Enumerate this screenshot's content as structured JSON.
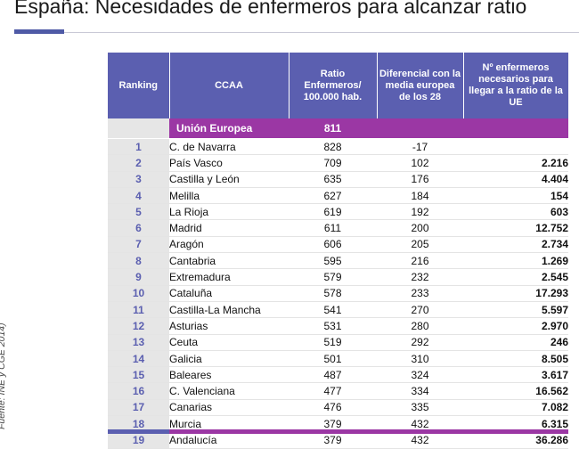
{
  "title": "España: Necesidades de enfermeros para alcanzar ratio",
  "source": "Fuente: INE  y CGE 2014)",
  "headers": {
    "ranking": "Ranking",
    "ccaa": "CCAA",
    "ratio": "Ratio Enfermeros/ 100.000 hab.",
    "diferencial": "Diferencial con la media europea de los 28",
    "necesarios": "Nº enfermeros necesarios para llegar a la ratio de la UE"
  },
  "eu_row": {
    "name": "Unión Europea",
    "ratio": "811"
  },
  "rows": [
    {
      "rank": "1",
      "ccaa": "C. de Navarra",
      "ratio": "828",
      "dif": "-17",
      "need": ""
    },
    {
      "rank": "2",
      "ccaa": "País Vasco",
      "ratio": "709",
      "dif": "102",
      "need": "2.216"
    },
    {
      "rank": "3",
      "ccaa": "Castilla y León",
      "ratio": "635",
      "dif": "176",
      "need": "4.404"
    },
    {
      "rank": "4",
      "ccaa": "Melilla",
      "ratio": "627",
      "dif": "184",
      "need": "154"
    },
    {
      "rank": "5",
      "ccaa": "La Rioja",
      "ratio": "619",
      "dif": "192",
      "need": "603"
    },
    {
      "rank": "6",
      "ccaa": "Madrid",
      "ratio": "611",
      "dif": "200",
      "need": "12.752"
    },
    {
      "rank": "7",
      "ccaa": "Aragón",
      "ratio": "606",
      "dif": "205",
      "need": "2.734"
    },
    {
      "rank": "8",
      "ccaa": "Cantabria",
      "ratio": "595",
      "dif": "216",
      "need": "1.269"
    },
    {
      "rank": "9",
      "ccaa": "Extremadura",
      "ratio": "579",
      "dif": "232",
      "need": "2.545"
    },
    {
      "rank": "10",
      "ccaa": "Cataluña",
      "ratio": "578",
      "dif": "233",
      "need": "17.293"
    },
    {
      "rank": "11",
      "ccaa": "Castilla-La Mancha",
      "ratio": "541",
      "dif": "270",
      "need": "5.597"
    },
    {
      "rank": "12",
      "ccaa": "Asturias",
      "ratio": "531",
      "dif": "280",
      "need": "2.970"
    },
    {
      "rank": "13",
      "ccaa": "Ceuta",
      "ratio": "519",
      "dif": "292",
      "need": "246"
    },
    {
      "rank": "14",
      "ccaa": "Galicia",
      "ratio": "501",
      "dif": "310",
      "need": "8.505"
    },
    {
      "rank": "15",
      "ccaa": "Baleares",
      "ratio": "487",
      "dif": "324",
      "need": "3.617"
    },
    {
      "rank": "16",
      "ccaa": "C. Valenciana",
      "ratio": "477",
      "dif": "334",
      "need": "16.562"
    },
    {
      "rank": "17",
      "ccaa": "Canarias",
      "ratio": "476",
      "dif": "335",
      "need": "7.082"
    },
    {
      "rank": "18",
      "ccaa": "Murcia",
      "ratio": "379",
      "dif": "432",
      "need": "6.315"
    },
    {
      "rank": "19",
      "ccaa": "Andalucía",
      "ratio": "379",
      "dif": "432",
      "need": "36.286"
    }
  ]
}
